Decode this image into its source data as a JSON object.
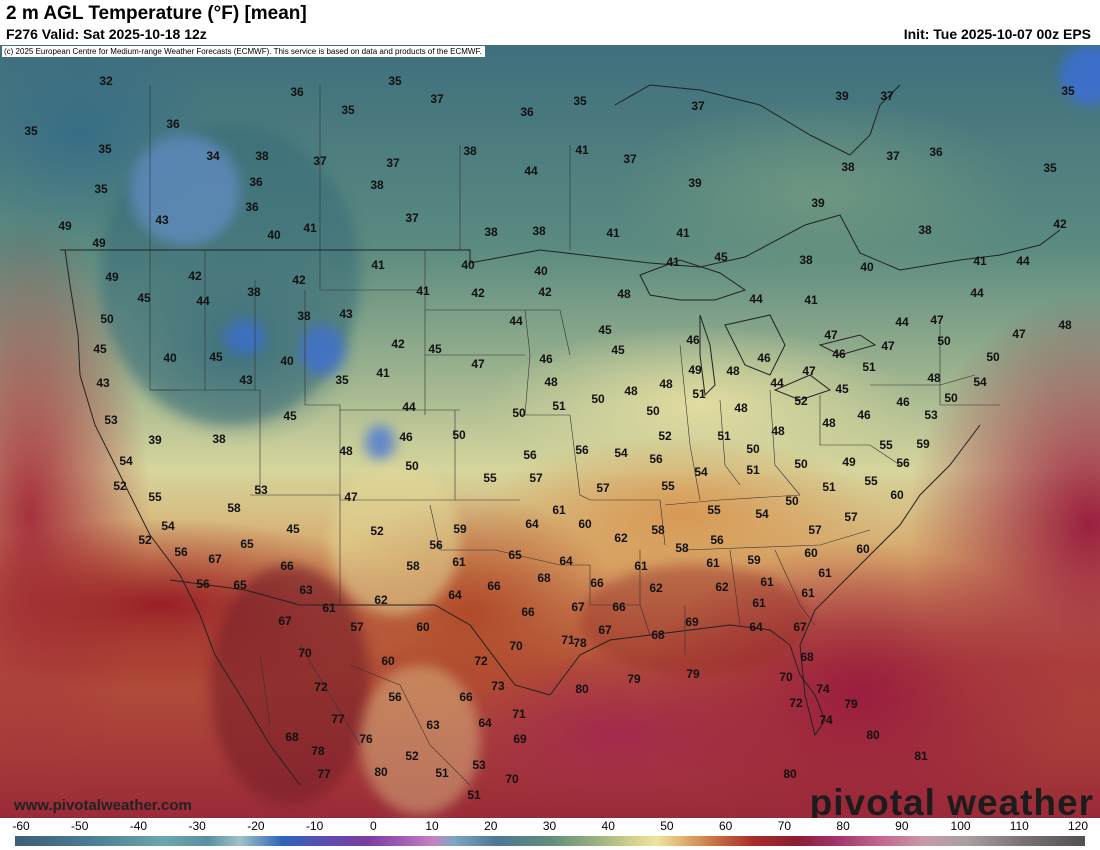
{
  "header": {
    "title": "2 m AGL Temperature (°F) [mean]",
    "valid": "F276 Valid: Sat 2025-10-18 12z",
    "init": "Init: Tue 2025-10-07 00z EPS"
  },
  "map": {
    "copyright": "(c) 2025 European Centre for Medium-range Weather Forecasts (ECMWF). This service is based on data and products of the ECMWF.",
    "website": "www.pivotalweather.com",
    "logo": "pivotal weather"
  },
  "colorbar": {
    "ticks": [
      "-60",
      "-50",
      "-40",
      "-30",
      "-20",
      "-10",
      "0",
      "10",
      "20",
      "30",
      "40",
      "50",
      "60",
      "70",
      "80",
      "90",
      "100",
      "110",
      "120"
    ]
  },
  "colors": {
    "cold": "#3f6f7d",
    "mild": "#d6d59c",
    "warm": "#b5523a",
    "hot": "#9a2a38",
    "snow_blue": "#3a6fd0"
  }
}
